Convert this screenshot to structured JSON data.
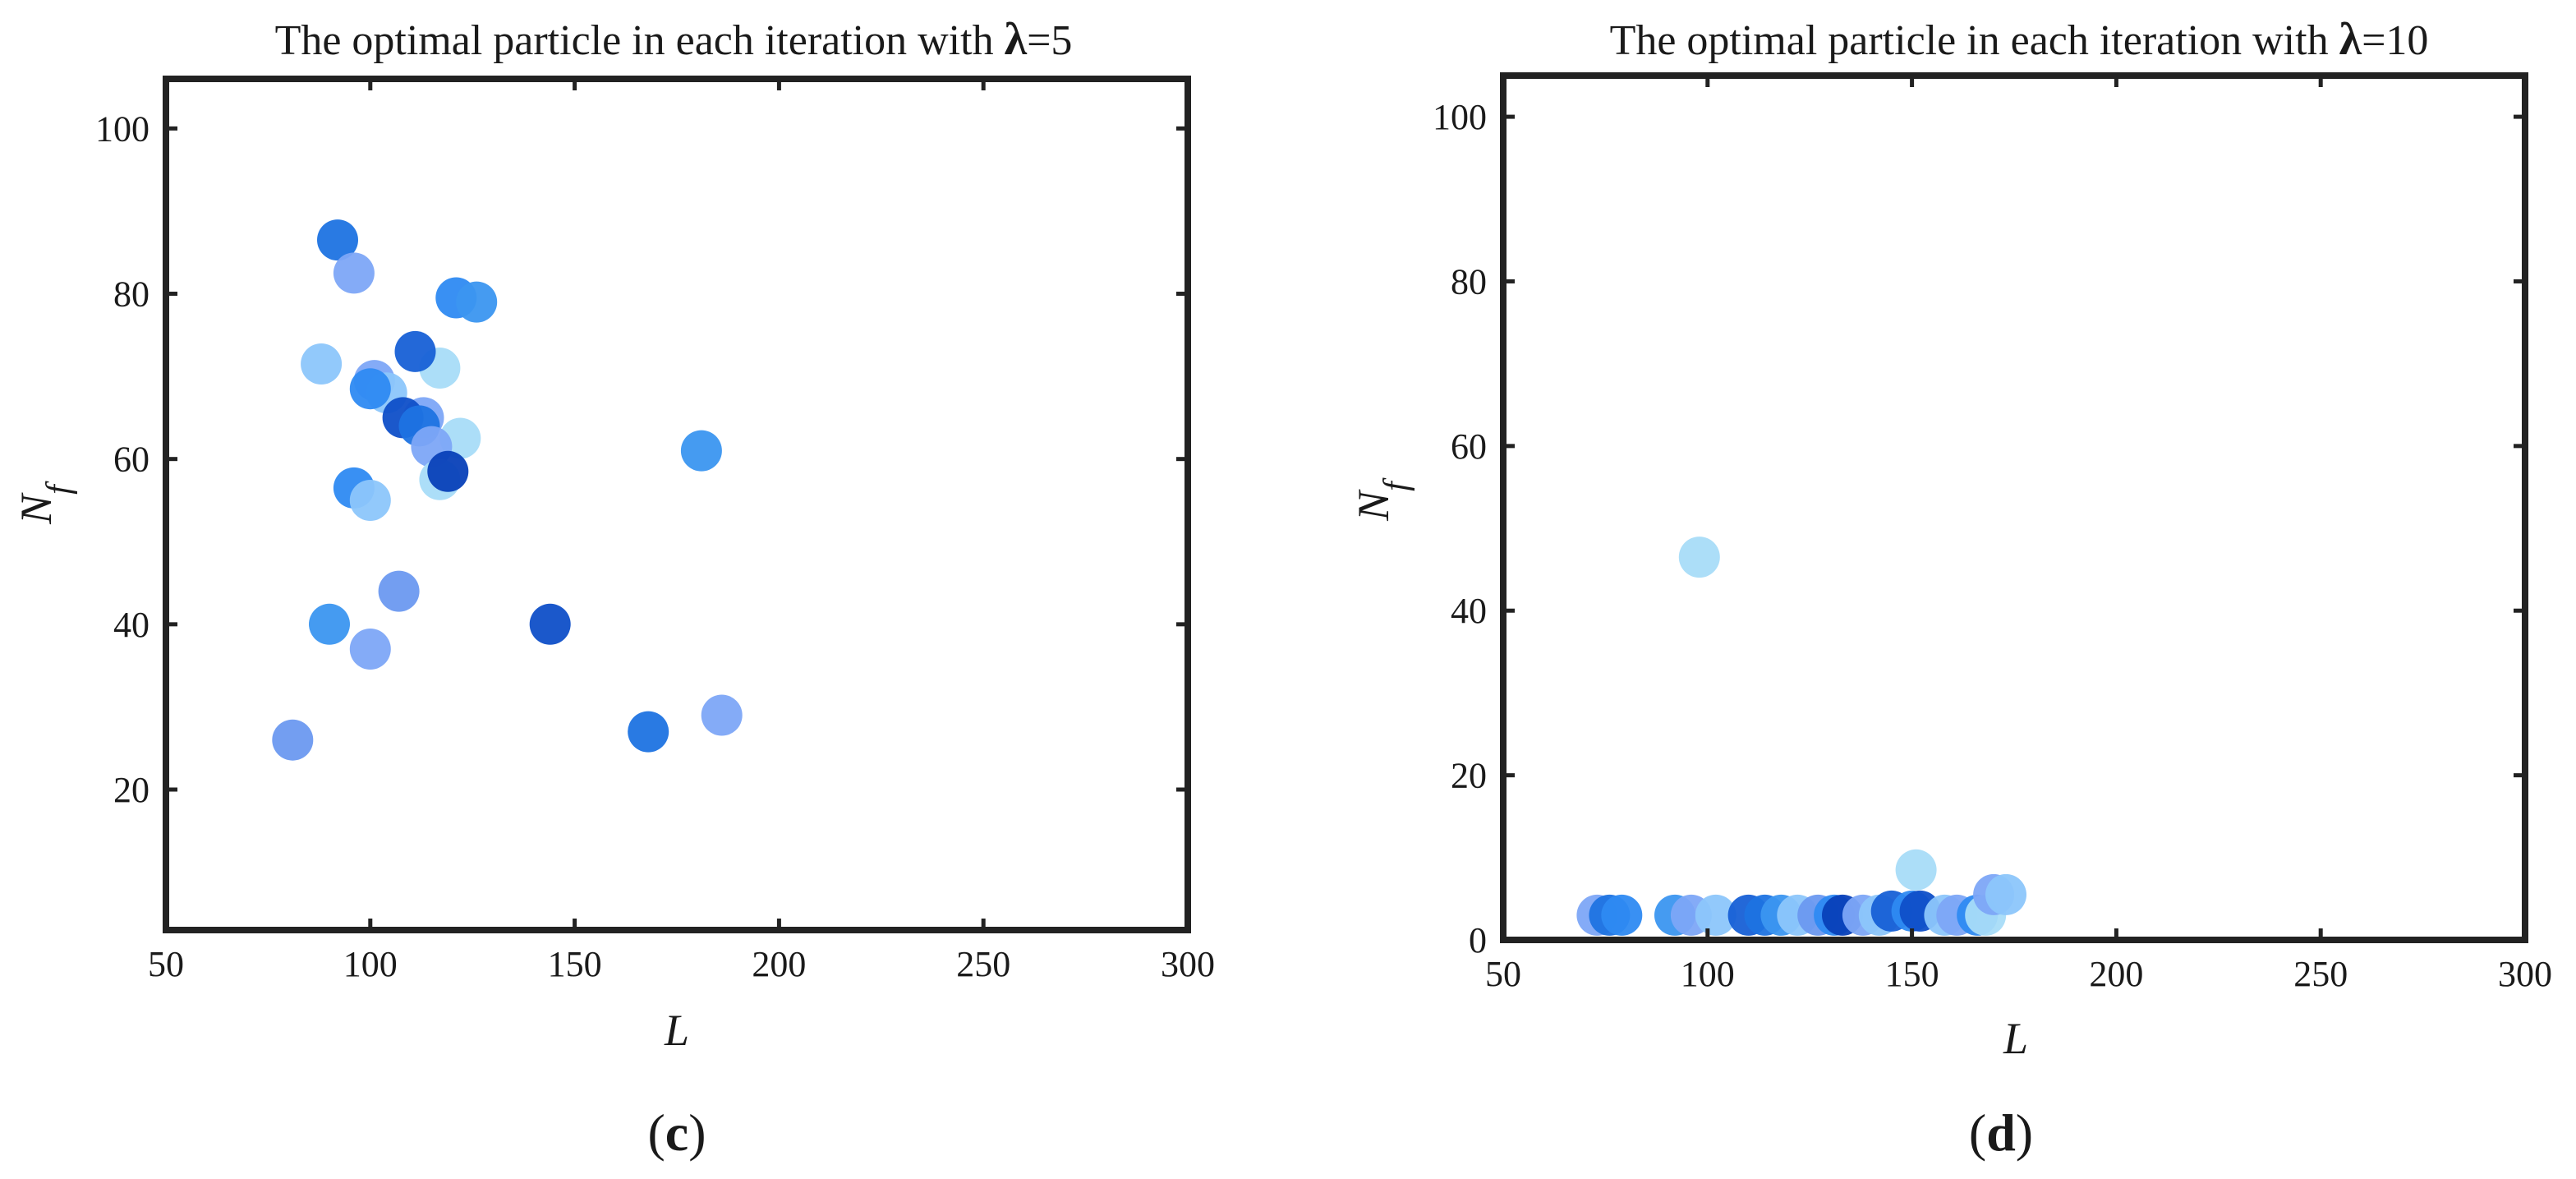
{
  "colors": {
    "frame": "#222222",
    "points": [
      "#a8dcf8",
      "#8cc6fb",
      "#7da6f7",
      "#6b99f0",
      "#3b96f0",
      "#2e8af2",
      "#1e73e2",
      "#1760d6",
      "#0f4fc8",
      "#0840b8"
    ]
  },
  "chart_data": [
    {
      "type": "scatter",
      "title": {
        "prefix": "The optimal particle in each iteration with ",
        "symbol": "λ",
        "suffix": "=5"
      },
      "xlabel": "L",
      "ylabel": {
        "base": "N",
        "sub": "f"
      },
      "xlim": [
        50,
        300
      ],
      "ylim": [
        3,
        106
      ],
      "xticks": [
        50,
        100,
        150,
        200,
        250,
        300
      ],
      "yticks": [
        20,
        40,
        60,
        80,
        100
      ],
      "grid": false,
      "legend": "none",
      "panel_label": {
        "open": "(",
        "letter": "c",
        "close": ")"
      },
      "points": [
        {
          "x": 92,
          "y": 86.5,
          "color": 6
        },
        {
          "x": 96,
          "y": 82.5,
          "color": 2
        },
        {
          "x": 121,
          "y": 79.5,
          "color": 5
        },
        {
          "x": 126,
          "y": 79,
          "color": 4
        },
        {
          "x": 88,
          "y": 71.5,
          "color": 1
        },
        {
          "x": 117,
          "y": 71,
          "color": 0
        },
        {
          "x": 111,
          "y": 73,
          "color": 7
        },
        {
          "x": 101,
          "y": 69.5,
          "color": 2
        },
        {
          "x": 104,
          "y": 68,
          "color": 1
        },
        {
          "x": 100,
          "y": 68.5,
          "color": 5
        },
        {
          "x": 113,
          "y": 65,
          "color": 2
        },
        {
          "x": 108,
          "y": 65,
          "color": 8
        },
        {
          "x": 112,
          "y": 64,
          "color": 6
        },
        {
          "x": 122,
          "y": 62.5,
          "color": 0
        },
        {
          "x": 115,
          "y": 61.5,
          "color": 2
        },
        {
          "x": 117,
          "y": 57.5,
          "color": 0
        },
        {
          "x": 181,
          "y": 61,
          "color": 4
        },
        {
          "x": 119,
          "y": 58.5,
          "color": 9
        },
        {
          "x": 96,
          "y": 56.5,
          "color": 5
        },
        {
          "x": 100,
          "y": 55,
          "color": 1
        },
        {
          "x": 107,
          "y": 44,
          "color": 3
        },
        {
          "x": 90,
          "y": 40,
          "color": 4
        },
        {
          "x": 144,
          "y": 40,
          "color": 8
        },
        {
          "x": 100,
          "y": 37,
          "color": 2
        },
        {
          "x": 168,
          "y": 27,
          "color": 6
        },
        {
          "x": 186,
          "y": 29,
          "color": 2
        },
        {
          "x": 81,
          "y": 26,
          "color": 3
        }
      ]
    },
    {
      "type": "scatter",
      "title": {
        "prefix": "The optimal particle in each iteration with ",
        "symbol": "λ",
        "suffix": "=10"
      },
      "xlabel": "L",
      "ylabel": {
        "base": "N",
        "sub": "f"
      },
      "xlim": [
        50,
        300
      ],
      "ylim": [
        0,
        105
      ],
      "xticks": [
        50,
        100,
        150,
        200,
        250,
        300
      ],
      "yticks": [
        0,
        20,
        40,
        60,
        80,
        100
      ],
      "grid": false,
      "legend": "none",
      "panel_label": {
        "open": "(",
        "letter": "d",
        "close": ")"
      },
      "points": [
        {
          "x": 98,
          "y": 46.5,
          "color": 0
        },
        {
          "x": 151,
          "y": 8.5,
          "color": 0
        },
        {
          "x": 73,
          "y": 3,
          "color": 2
        },
        {
          "x": 76,
          "y": 3,
          "color": 6
        },
        {
          "x": 79,
          "y": 3,
          "color": 5
        },
        {
          "x": 92,
          "y": 3,
          "color": 4
        },
        {
          "x": 96,
          "y": 3,
          "color": 2
        },
        {
          "x": 102,
          "y": 3,
          "color": 1
        },
        {
          "x": 110,
          "y": 3,
          "color": 7
        },
        {
          "x": 114,
          "y": 3,
          "color": 6
        },
        {
          "x": 118,
          "y": 3,
          "color": 4
        },
        {
          "x": 122,
          "y": 3,
          "color": 1
        },
        {
          "x": 127,
          "y": 3,
          "color": 3
        },
        {
          "x": 131,
          "y": 3,
          "color": 5
        },
        {
          "x": 133,
          "y": 3,
          "color": 9
        },
        {
          "x": 138,
          "y": 3,
          "color": 2
        },
        {
          "x": 142,
          "y": 3,
          "color": 1
        },
        {
          "x": 145,
          "y": 3.5,
          "color": 7
        },
        {
          "x": 150,
          "y": 3.5,
          "color": 5
        },
        {
          "x": 152,
          "y": 3.5,
          "color": 8
        },
        {
          "x": 158,
          "y": 3,
          "color": 1
        },
        {
          "x": 161,
          "y": 3,
          "color": 2
        },
        {
          "x": 166,
          "y": 3,
          "color": 5
        },
        {
          "x": 168,
          "y": 3,
          "color": 0
        },
        {
          "x": 170,
          "y": 5.5,
          "color": 2
        },
        {
          "x": 173,
          "y": 5.5,
          "color": 1
        }
      ]
    }
  ]
}
